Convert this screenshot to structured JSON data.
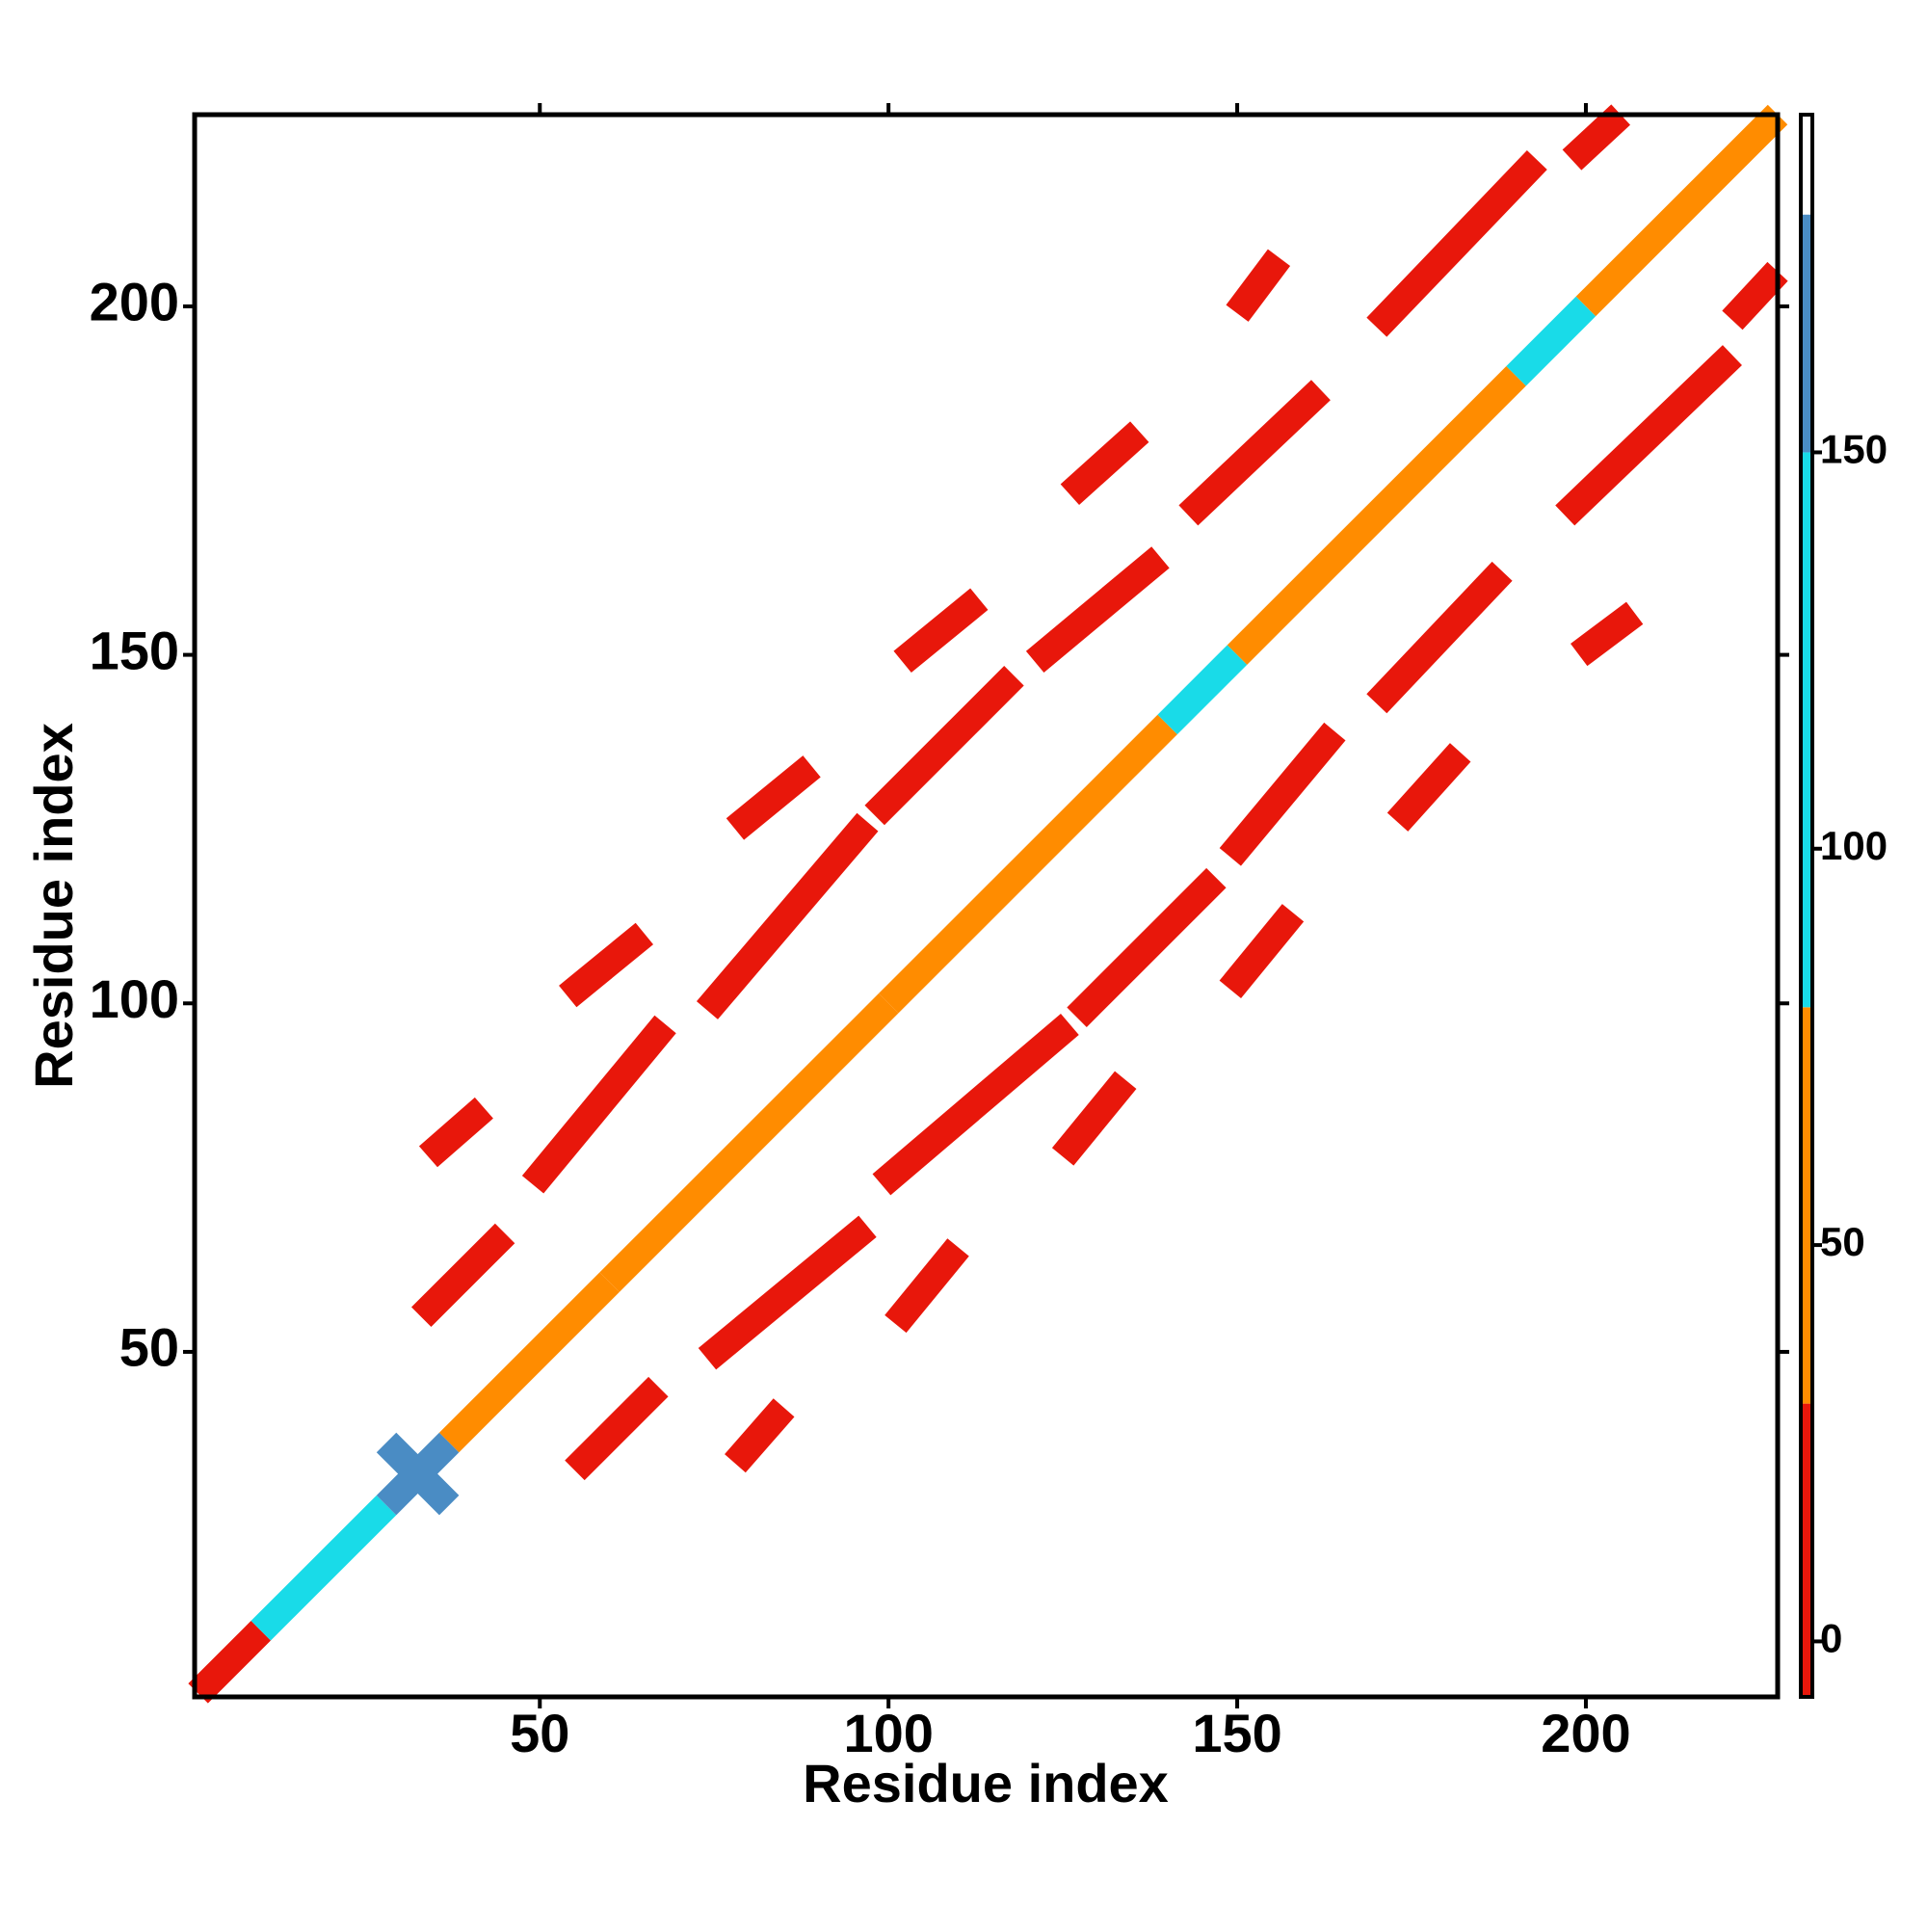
{
  "chart_data": {
    "type": "contact-map",
    "xlabel": "Residue index",
    "ylabel": "Residue index",
    "xlim": [
      0.5,
      227.5
    ],
    "ylim": [
      0.5,
      227.5
    ],
    "xticks": [
      50,
      100,
      150,
      200
    ],
    "yticks": [
      50,
      100,
      150,
      200
    ],
    "colorbar": {
      "lim": [
        -7,
        192.6
      ],
      "ticks": [
        0,
        50,
        100,
        150
      ],
      "edges": [
        -7,
        30,
        80,
        150,
        180,
        192.6
      ],
      "colors": [
        "#e8170b",
        "#ff8c00",
        "#19dbe8",
        "#4a8cc4",
        "#ffffff"
      ]
    },
    "contacts": [
      {
        "x": [
          1,
          10
        ],
        "y": [
          1,
          10
        ],
        "value": 20
      },
      {
        "x": [
          10,
          28
        ],
        "y": [
          10,
          28
        ],
        "value": 100
      },
      {
        "x": [
          28,
          37
        ],
        "y": [
          28,
          37
        ],
        "value": 170
      },
      {
        "x": [
          28,
          37
        ],
        "y": [
          37,
          28
        ],
        "value": 170
      },
      {
        "x": [
          37,
          60
        ],
        "y": [
          37,
          60
        ],
        "value": 60
      },
      {
        "x": [
          60,
          100
        ],
        "y": [
          60,
          100
        ],
        "value": 40
      },
      {
        "x": [
          100,
          140
        ],
        "y": [
          100,
          140
        ],
        "value": 60
      },
      {
        "x": [
          140,
          150
        ],
        "y": [
          140,
          150
        ],
        "value": 110
      },
      {
        "x": [
          150,
          190
        ],
        "y": [
          150,
          190
        ],
        "value": 50
      },
      {
        "x": [
          190,
          200
        ],
        "y": [
          190,
          200
        ],
        "value": 100
      },
      {
        "x": [
          200,
          227.5
        ],
        "y": [
          200,
          227.5
        ],
        "value": 40
      },
      {
        "x": [
          33,
          45
        ],
        "y": [
          55,
          67
        ],
        "value": 10
      },
      {
        "x": [
          49,
          68
        ],
        "y": [
          74,
          97
        ],
        "value": 10
      },
      {
        "x": [
          74,
          97
        ],
        "y": [
          99,
          126
        ],
        "value": 10
      },
      {
        "x": [
          98,
          118
        ],
        "y": [
          127,
          147
        ],
        "value": 10
      },
      {
        "x": [
          121,
          139
        ],
        "y": [
          149,
          164
        ],
        "value": 10
      },
      {
        "x": [
          143,
          162
        ],
        "y": [
          170,
          188
        ],
        "value": 10
      },
      {
        "x": [
          170,
          193
        ],
        "y": [
          197,
          221
        ],
        "value": 10
      },
      {
        "x": [
          198,
          205
        ],
        "y": [
          221,
          227.5
        ],
        "value": 10
      },
      {
        "x": [
          55,
          67
        ],
        "y": [
          33,
          45
        ],
        "value": 10
      },
      {
        "x": [
          74,
          97
        ],
        "y": [
          49,
          68
        ],
        "value": 10
      },
      {
        "x": [
          99,
          126
        ],
        "y": [
          74,
          97
        ],
        "value": 10
      },
      {
        "x": [
          127,
          147
        ],
        "y": [
          98,
          118
        ],
        "value": 10
      },
      {
        "x": [
          149,
          164
        ],
        "y": [
          121,
          139
        ],
        "value": 10
      },
      {
        "x": [
          170,
          188
        ],
        "y": [
          143,
          162
        ],
        "value": 10
      },
      {
        "x": [
          197,
          221
        ],
        "y": [
          170,
          193
        ],
        "value": 10
      },
      {
        "x": [
          221,
          227.5
        ],
        "y": [
          198,
          205
        ],
        "value": 10
      },
      {
        "x": [
          34,
          42
        ],
        "y": [
          78,
          85
        ],
        "value": 5
      },
      {
        "x": [
          54,
          65
        ],
        "y": [
          101,
          110
        ],
        "value": 5
      },
      {
        "x": [
          78,
          89
        ],
        "y": [
          125,
          134
        ],
        "value": 5
      },
      {
        "x": [
          102,
          113
        ],
        "y": [
          149,
          158
        ],
        "value": 5
      },
      {
        "x": [
          126,
          136
        ],
        "y": [
          173,
          182
        ],
        "value": 5
      },
      {
        "x": [
          150,
          156
        ],
        "y": [
          199,
          207
        ],
        "value": 5
      },
      {
        "x": [
          78,
          85
        ],
        "y": [
          34,
          42
        ],
        "value": 5
      },
      {
        "x": [
          101,
          110
        ],
        "y": [
          54,
          65
        ],
        "value": 5
      },
      {
        "x": [
          125,
          134
        ],
        "y": [
          78,
          89
        ],
        "value": 5
      },
      {
        "x": [
          149,
          158
        ],
        "y": [
          102,
          113
        ],
        "value": 5
      },
      {
        "x": [
          173,
          182
        ],
        "y": [
          126,
          136
        ],
        "value": 5
      },
      {
        "x": [
          199,
          207
        ],
        "y": [
          150,
          156
        ],
        "value": 5
      }
    ]
  }
}
